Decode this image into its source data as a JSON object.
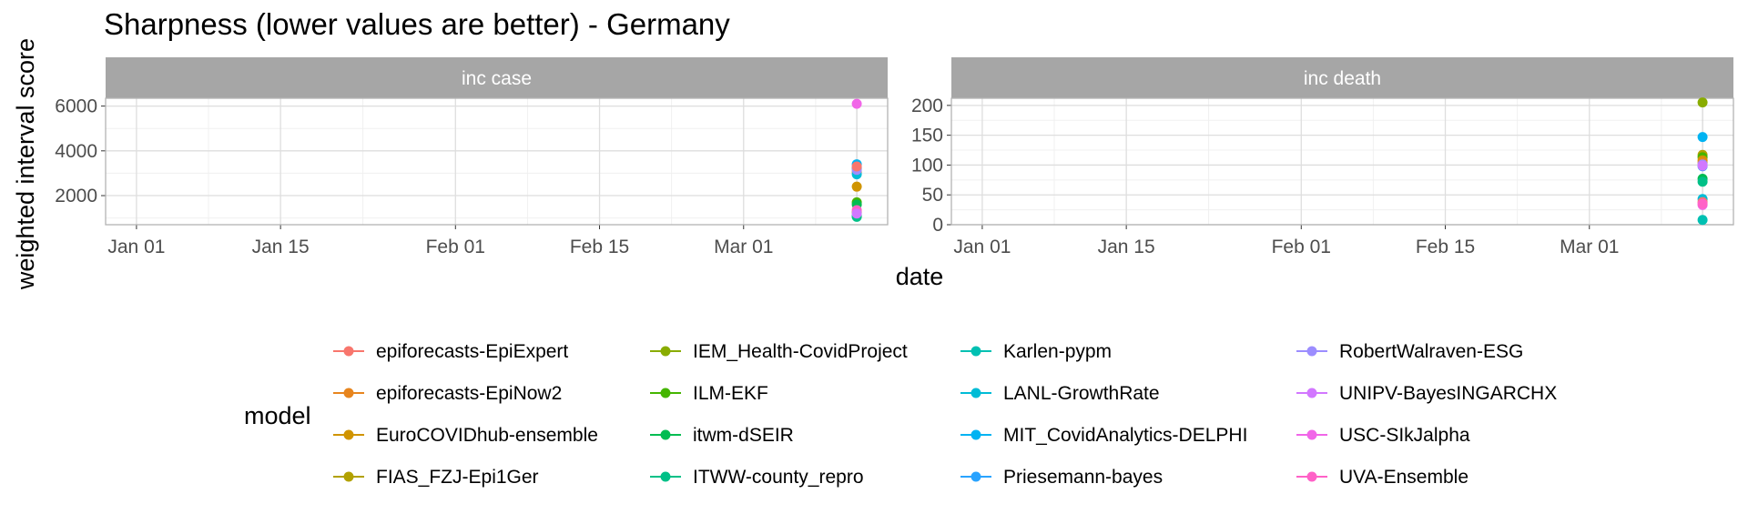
{
  "chart_data": {
    "type": "scatter",
    "title": "Sharpness (lower values are better) - Germany",
    "xlabel": "date",
    "ylabel": "weighted interval score",
    "legend_title": "model",
    "legend_position": "bottom",
    "x_ticks": [
      "Jan 01",
      "Jan 15",
      "Feb 01",
      "Feb 15",
      "Mar 01"
    ],
    "x_range": [
      "2021-12-29",
      "2022-03-15"
    ],
    "models": [
      {
        "name": "epiforecasts-EpiExpert",
        "color": "#F8766D"
      },
      {
        "name": "epiforecasts-EpiNow2",
        "color": "#E7851E"
      },
      {
        "name": "EuroCOVIDhub-ensemble",
        "color": "#D09400"
      },
      {
        "name": "FIAS_FZJ-Epi1Ger",
        "color": "#B2A100"
      },
      {
        "name": "IEM_Health-CovidProject",
        "color": "#89AC00"
      },
      {
        "name": "ILM-EKF",
        "color": "#45B500"
      },
      {
        "name": "itwm-dSEIR",
        "color": "#00BC51"
      },
      {
        "name": "ITWW-county_repro",
        "color": "#00C087"
      },
      {
        "name": "Karlen-pypm",
        "color": "#00C0B2"
      },
      {
        "name": "LANL-GrowthRate",
        "color": "#00BCD6"
      },
      {
        "name": "MIT_CovidAnalytics-DELPHI",
        "color": "#00B3F2"
      },
      {
        "name": "Priesemann-bayes",
        "color": "#29A3FF"
      },
      {
        "name": "RobertWalraven-ESG",
        "color": "#9C8DFF"
      },
      {
        "name": "UNIPV-BayesINGARCHX",
        "color": "#D277FF"
      },
      {
        "name": "USC-SIkJalpha",
        "color": "#F166E8"
      },
      {
        "name": "UVA-Ensemble",
        "color": "#FF61C7"
      }
    ],
    "panels": [
      {
        "label": "inc case",
        "y_ticks": [
          2000,
          4000,
          6000
        ],
        "ylim": [
          700,
          6350
        ],
        "date": "2022-03-12",
        "points": [
          {
            "model": "EuroCOVIDhub-ensemble",
            "y": 2400
          },
          {
            "model": "epiforecasts-EpiNow2",
            "y": 3050
          },
          {
            "model": "FIAS_FZJ-Epi1Ger",
            "y": 3200
          },
          {
            "model": "MIT_CovidAnalytics-DELPHI",
            "y": 3400
          },
          {
            "model": "LANL-GrowthRate",
            "y": 2950
          },
          {
            "model": "Priesemann-bayes",
            "y": 3250
          },
          {
            "model": "RobertWalraven-ESG",
            "y": 3150
          },
          {
            "model": "epiforecasts-EpiExpert",
            "y": 3300
          },
          {
            "model": "ILM-EKF",
            "y": 1700
          },
          {
            "model": "itwm-dSEIR",
            "y": 1600
          },
          {
            "model": "IEM_Health-CovidProject",
            "y": 1250
          },
          {
            "model": "Karlen-pypm",
            "y": 1100
          },
          {
            "model": "ITWW-county_repro",
            "y": 1050
          },
          {
            "model": "UVA-Ensemble",
            "y": 1350
          },
          {
            "model": "UNIPV-BayesINGARCHX",
            "y": 1200
          },
          {
            "model": "USC-SIkJalpha",
            "y": 6100
          }
        ]
      },
      {
        "label": "inc death",
        "y_ticks": [
          0,
          50,
          100,
          150,
          200
        ],
        "ylim": [
          0,
          212
        ],
        "date": "2022-03-12",
        "points": [
          {
            "model": "IEM_Health-CovidProject",
            "y": 205
          },
          {
            "model": "MIT_CovidAnalytics-DELPHI",
            "y": 147
          },
          {
            "model": "FIAS_FZJ-Epi1Ger",
            "y": 117
          },
          {
            "model": "ILM-EKF",
            "y": 113
          },
          {
            "model": "EuroCOVIDhub-ensemble",
            "y": 108
          },
          {
            "model": "epiforecasts-EpiNow2",
            "y": 104
          },
          {
            "model": "RobertWalraven-ESG",
            "y": 101
          },
          {
            "model": "Priesemann-bayes",
            "y": 98
          },
          {
            "model": "UNIPV-BayesINGARCHX",
            "y": 99
          },
          {
            "model": "itwm-dSEIR",
            "y": 77
          },
          {
            "model": "ITWW-county_repro",
            "y": 72
          },
          {
            "model": "LANL-GrowthRate",
            "y": 43
          },
          {
            "model": "epiforecasts-EpiExpert",
            "y": 38
          },
          {
            "model": "USC-SIkJalpha",
            "y": 33
          },
          {
            "model": "UVA-Ensemble",
            "y": 35
          },
          {
            "model": "Karlen-pypm",
            "y": 8
          }
        ]
      }
    ]
  }
}
